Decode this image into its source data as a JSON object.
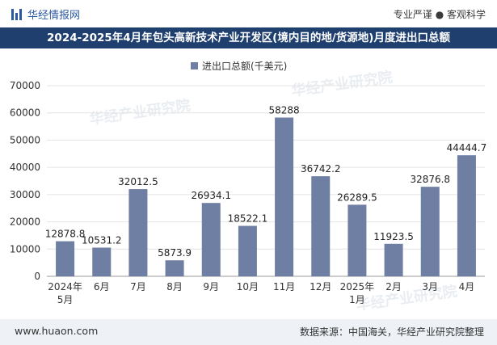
{
  "header": {
    "brand": "华经情报网",
    "tagline": "专业严谨 ● 客观科学"
  },
  "title": "2024-2025年4月年包头高新技术产业开发区(境内目的地/货源地)月度进出口总额",
  "footer": {
    "site": "www.huaon.com",
    "source": "数据来源：中国海关，华经产业研究院整理"
  },
  "watermark": "华经产业研究院",
  "colors": {
    "bar": "#6f7fa3",
    "title_bg": "#1f3f6e",
    "brand": "#2c5aa0"
  },
  "chart_data": {
    "type": "bar",
    "title": "2024-2025年4月年包头高新技术产业开发区(境内目的地/货源地)月度进出口总额",
    "legend": "进出口总额(千美元)",
    "categories": [
      "2024年\n5月",
      "6月",
      "7月",
      "8月",
      "9月",
      "10月",
      "11月",
      "12月",
      "2025年\n1月",
      "2月",
      "3月",
      "4月"
    ],
    "values": [
      12878.8,
      10531.2,
      32012.5,
      5873.9,
      26934.1,
      18522.1,
      58288,
      36742.2,
      26289.5,
      11923.5,
      32876.8,
      44444.7
    ],
    "labels": [
      "12878.8",
      "10531.2",
      "32012.5",
      "5873.9",
      "26934.1",
      "18522.1",
      "58288",
      "36742.2",
      "26289.5",
      "11923.5",
      "32876.8",
      "44444.7"
    ],
    "yticks": [
      0,
      10000,
      20000,
      30000,
      40000,
      50000,
      60000,
      70000
    ],
    "ylim": [
      0,
      70000
    ],
    "xlabel": "",
    "ylabel": ""
  }
}
